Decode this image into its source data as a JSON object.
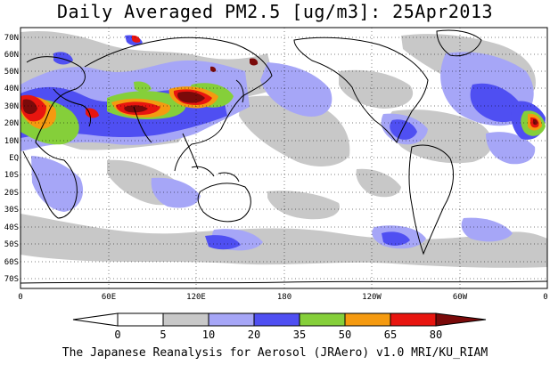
{
  "title": "Daily Averaged PM2.5 [ug/m3]: 25Apr2013",
  "footer": "The Japanese Reanalysis for Aerosol (JRAero) v1.0 MRI/KU_RIAM",
  "lat_labels": [
    "70N",
    "60N",
    "50N",
    "40N",
    "30N",
    "20N",
    "10N",
    "EQ",
    "10S",
    "20S",
    "30S",
    "40S",
    "50S",
    "60S",
    "70S"
  ],
  "lon_labels": [
    "0",
    "60E",
    "120E",
    "180",
    "120W",
    "60W",
    "0"
  ],
  "colorbar": {
    "ticks": [
      "0",
      "5",
      "10",
      "20",
      "35",
      "50",
      "65",
      "80"
    ],
    "colors": [
      "#ffffff",
      "#c8c8c8",
      "#a6a6f7",
      "#4f4ff2",
      "#85cf3a",
      "#f59a10",
      "#e8150f",
      "#7a0a0a"
    ]
  },
  "legend_colors": {
    "low": "#c8c8c8",
    "mid": "#a6a6f7",
    "blue": "#4f4ff2",
    "green": "#85cf3a",
    "orange": "#f59a10",
    "red": "#e8150f",
    "dark": "#7a0a0a"
  }
}
